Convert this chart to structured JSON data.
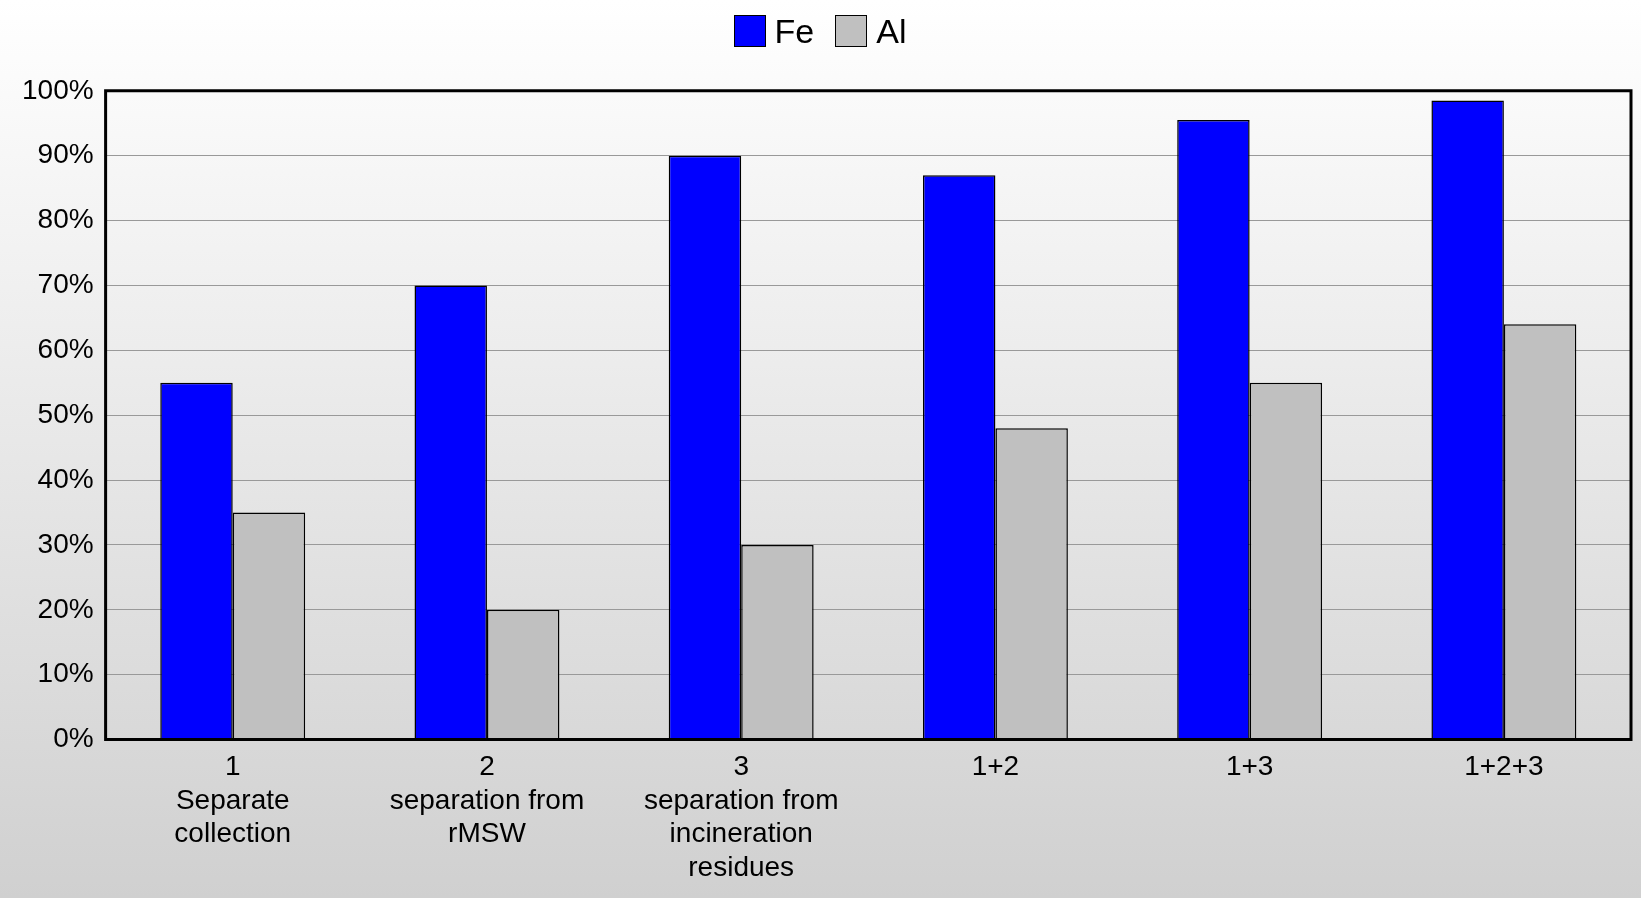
{
  "chart_data": {
    "type": "bar",
    "categories": [
      "1\nSeparate\ncollection",
      "2\nseparation from\nrMSW",
      "3\nseparation from\nincineration\nresidues",
      "1+2",
      "1+3",
      "1+2+3"
    ],
    "series": [
      {
        "name": "Fe",
        "color": "#0000ff",
        "values": [
          55,
          70,
          90,
          87,
          95.5,
          98.5
        ]
      },
      {
        "name": "Al",
        "color": "#c0c0c0",
        "values": [
          35,
          20,
          30,
          48,
          55,
          64
        ]
      }
    ],
    "ylim": [
      0,
      100
    ],
    "yticks": [
      {
        "value": 0,
        "label": "0%"
      },
      {
        "value": 10,
        "label": "10%"
      },
      {
        "value": 20,
        "label": "20%"
      },
      {
        "value": 30,
        "label": "30%"
      },
      {
        "value": 40,
        "label": "40%"
      },
      {
        "value": 50,
        "label": "50%"
      },
      {
        "value": 60,
        "label": "60%"
      },
      {
        "value": 70,
        "label": "70%"
      },
      {
        "value": 80,
        "label": "80%"
      },
      {
        "value": 90,
        "label": "90%"
      },
      {
        "value": 100,
        "label": "100%"
      }
    ],
    "grid": "y",
    "legend": "top"
  }
}
